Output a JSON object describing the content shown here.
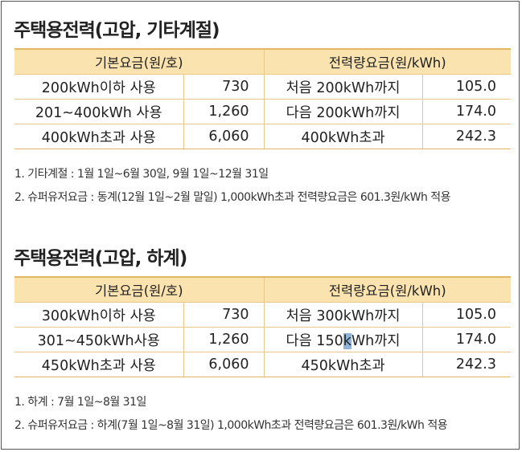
{
  "section1": {
    "title": "주택용전력(고압, 기타계절)",
    "header_base": "기본요금(원/호)",
    "header_energy": "전력량요금(원/kWh)",
    "rows": [
      {
        "base_label": "200kWh이하 사용",
        "base_value": "730",
        "energy_label": "처음 200kWh까지",
        "energy_value": "105.0"
      },
      {
        "base_label": "201~400kWh 사용",
        "base_value": "1,260",
        "energy_label": "다음 200kWh까지",
        "energy_value": "174.0"
      },
      {
        "base_label": "400kWh초과 사용",
        "base_value": "6,060",
        "energy_label": "400kWh초과",
        "energy_value": "242.3"
      }
    ],
    "notes": [
      "1. 기타계절 : 1월 1일~6월 30일, 9월 1일~12월 31일",
      "2. 슈퍼유저요금 : 동계(12월 1일~2월 말일) 1,000kWh초과 전력량요금은 601.3원/kWh 적용"
    ]
  },
  "section2": {
    "title": "주택용전력(고압, 하계)",
    "header_base": "기본요금(원/호)",
    "header_energy": "전력량요금(원/kWh)",
    "rows": [
      {
        "base_label": "300kWh이하 사용",
        "base_value": "730",
        "energy_label": "처음 300kWh까지",
        "energy_value": "105.0"
      },
      {
        "base_label": "301~450kWh사용",
        "base_value": "1,260",
        "energy_label_pre": "다음 150",
        "energy_label_hl": "k",
        "energy_label_post": "Wh까지",
        "energy_value": "174.0"
      },
      {
        "base_label": "450kWh초과 사용",
        "base_value": "6,060",
        "energy_label": "450kWh초과",
        "energy_value": "242.3"
      }
    ],
    "notes": [
      "1. 하계 : 7월 1일~8월 31일",
      "2. 슈퍼유저요금 : 하계(7월 1일~8월 31일) 1,000kWh초과 전력량요금은 601.3원/kWh 적용"
    ]
  }
}
